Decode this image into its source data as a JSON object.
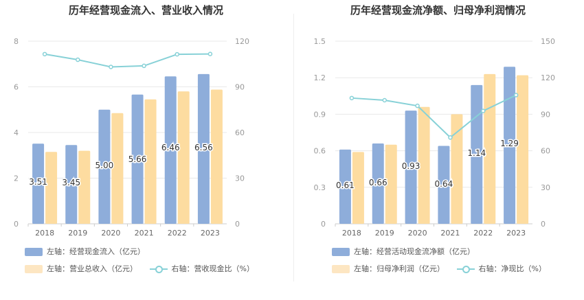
{
  "colors": {
    "bar1": "#8eadda",
    "bar2": "#fddca0",
    "line": "#87d1d7",
    "grid": "#e8e8e8",
    "axis": "#999999"
  },
  "chart_data": [
    {
      "type": "bar",
      "title": "历年经营现金流入、营业收入情况",
      "categories": [
        "2018",
        "2019",
        "2020",
        "2021",
        "2022",
        "2023"
      ],
      "series": [
        {
          "name": "左轴：经营现金流入（亿元）",
          "axis": "left",
          "kind": "bar",
          "values": [
            3.51,
            3.45,
            5.0,
            5.66,
            6.46,
            6.56
          ],
          "labels": [
            "3.51",
            "3.45",
            "5.00",
            "5.66",
            "6.46",
            "6.56"
          ]
        },
        {
          "name": "左轴：营业总收入（亿元）",
          "axis": "left",
          "kind": "bar",
          "values": [
            3.15,
            3.2,
            4.85,
            5.45,
            5.8,
            5.88
          ]
        },
        {
          "name": "右轴：营收现金比（%）",
          "axis": "right",
          "kind": "line",
          "values": [
            111.5,
            107.8,
            103.1,
            103.8,
            111.4,
            111.6
          ]
        }
      ],
      "left_axis": {
        "min": 0,
        "max": 8,
        "ticks": [
          "0",
          "2",
          "4",
          "6",
          "8"
        ]
      },
      "right_axis": {
        "min": 0,
        "max": 120,
        "ticks": [
          "0",
          "30",
          "60",
          "90",
          "120"
        ]
      }
    },
    {
      "type": "bar",
      "title": "历年经营现金流净额、归母净利润情况",
      "categories": [
        "2018",
        "2019",
        "2020",
        "2021",
        "2022",
        "2023"
      ],
      "series": [
        {
          "name": "左轴：经营活动现金流净额（亿元）",
          "axis": "left",
          "kind": "bar",
          "values": [
            0.61,
            0.66,
            0.93,
            0.64,
            1.14,
            1.29
          ],
          "labels": [
            "0.61",
            "0.66",
            "0.93",
            "0.64",
            "1.14",
            "1.29"
          ]
        },
        {
          "name": "左轴：归母净利润（亿元）",
          "axis": "left",
          "kind": "bar",
          "values": [
            0.59,
            0.65,
            0.96,
            0.9,
            1.23,
            1.22
          ]
        },
        {
          "name": "右轴：净现比（%）",
          "axis": "right",
          "kind": "line",
          "values": [
            103.3,
            101.5,
            96.9,
            70.9,
            92.7,
            105.7
          ]
        }
      ],
      "left_axis": {
        "min": 0,
        "max": 1.5,
        "ticks": [
          "0",
          "0.3",
          "0.6",
          "0.9",
          "1.2",
          "1.5"
        ]
      },
      "right_axis": {
        "min": 0,
        "max": 150,
        "ticks": [
          "0",
          "30",
          "60",
          "90",
          "120",
          "150"
        ]
      }
    }
  ]
}
